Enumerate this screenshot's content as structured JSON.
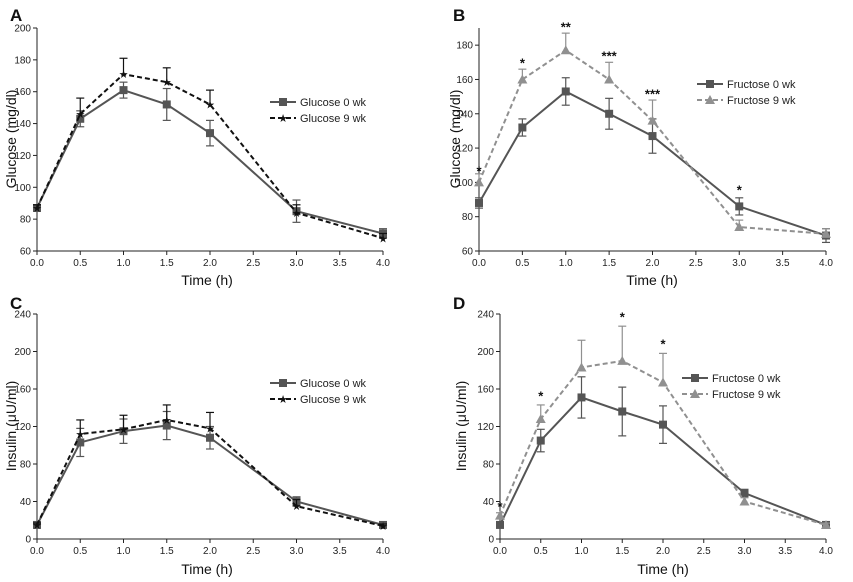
{
  "chart_data": [
    {
      "panel": "A",
      "type": "line",
      "xlabel": "Time (h)",
      "ylabel": "Glucose (mg/dl)",
      "xlim": [
        0,
        4
      ],
      "ylim": [
        60,
        200
      ],
      "xticks": [
        "0.0",
        "0.5",
        "1.0",
        "1.5",
        "2.0",
        "2.5",
        "3.0",
        "3.5",
        "4.0"
      ],
      "yticks": [
        "60",
        "80",
        "100",
        "120",
        "140",
        "160",
        "180",
        "200"
      ],
      "x": [
        0,
        0.5,
        1.0,
        1.5,
        2.0,
        3.0,
        4.0
      ],
      "legend_position": "right-middle",
      "series": [
        {
          "name": "Glucose 0 wk",
          "values": [
            87,
            143,
            161,
            152,
            134,
            85,
            71
          ],
          "errors": [
            2,
            5,
            5,
            10,
            8,
            7,
            3
          ],
          "color": "#555555",
          "dashed": false,
          "marker": "square"
        },
        {
          "name": "Glucose 9 wk",
          "values": [
            87,
            146,
            171,
            166,
            152,
            84,
            68
          ],
          "errors": [
            2,
            10,
            10,
            9,
            9,
            5,
            3
          ],
          "color": "#111111",
          "dashed": true,
          "marker": "star"
        }
      ],
      "annotations": []
    },
    {
      "panel": "B",
      "type": "line",
      "xlabel": "Time (h)",
      "ylabel": "Glucose (mg/dl)",
      "xlim": [
        0,
        4
      ],
      "ylim": [
        60,
        190
      ],
      "xticks": [
        "0.0",
        "0.5",
        "1.0",
        "1.5",
        "2.0",
        "2.5",
        "3.0",
        "3.5",
        "4.0"
      ],
      "yticks": [
        "60",
        "80",
        "100",
        "120",
        "140",
        "160",
        "180"
      ],
      "x": [
        0,
        0.5,
        1.0,
        1.5,
        2.0,
        3.0,
        4.0
      ],
      "legend_position": "right-top",
      "series": [
        {
          "name": "Fructose 0 wk",
          "values": [
            88,
            132,
            153,
            140,
            127,
            86,
            69
          ],
          "errors": [
            3,
            5,
            8,
            9,
            10,
            5,
            4
          ],
          "color": "#555555",
          "dashed": false,
          "marker": "square"
        },
        {
          "name": "Fructose 9 wk",
          "values": [
            100,
            160,
            177,
            160,
            136,
            74,
            70
          ],
          "errors": [
            5,
            6,
            10,
            10,
            12,
            4,
            3
          ],
          "color": "#909090",
          "dashed": true,
          "marker": "triangle"
        }
      ],
      "annotations": [
        {
          "x": 0.0,
          "value": 104,
          "text": "*"
        },
        {
          "x": 0.5,
          "value": 167,
          "text": "*"
        },
        {
          "x": 1.0,
          "value": 188,
          "text": "**"
        },
        {
          "x": 1.5,
          "value": 171,
          "text": "***"
        },
        {
          "x": 2.0,
          "value": 149,
          "text": "***"
        },
        {
          "x": 3.0,
          "value": 93,
          "text": "*"
        }
      ]
    },
    {
      "panel": "C",
      "type": "line",
      "xlabel": "Time (h)",
      "ylabel": "Insulin (μU/ml)",
      "xlim": [
        0,
        4
      ],
      "ylim": [
        0,
        240
      ],
      "xticks": [
        "0.0",
        "0.5",
        "1.0",
        "1.5",
        "2.0",
        "2.5",
        "3.0",
        "3.5",
        "4.0"
      ],
      "yticks": [
        "0",
        "40",
        "80",
        "120",
        "160",
        "200",
        "240"
      ],
      "x": [
        0,
        0.5,
        1.0,
        1.5,
        2.0,
        3.0,
        4.0
      ],
      "legend_position": "right-middle",
      "series": [
        {
          "name": "Glucose 0 wk",
          "values": [
            15,
            103,
            115,
            121,
            108,
            40,
            15
          ],
          "errors": [
            2,
            15,
            13,
            15,
            12,
            5,
            2
          ],
          "color": "#555555",
          "dashed": false,
          "marker": "square"
        },
        {
          "name": "Glucose 9 wk",
          "values": [
            15,
            112,
            117,
            127,
            118,
            35,
            14
          ],
          "errors": [
            2,
            15,
            15,
            16,
            17,
            7,
            2
          ],
          "color": "#111111",
          "dashed": true,
          "marker": "star"
        }
      ],
      "annotations": []
    },
    {
      "panel": "D",
      "type": "line",
      "xlabel": "Time (h)",
      "ylabel": "Insulin (μU/ml)",
      "xlim": [
        0,
        4
      ],
      "ylim": [
        0,
        240
      ],
      "xticks": [
        "0.0",
        "0.5",
        "1.0",
        "1.5",
        "2.0",
        "2.5",
        "3.0",
        "3.5",
        "4.0"
      ],
      "yticks": [
        "0",
        "40",
        "80",
        "120",
        "160",
        "200",
        "240"
      ],
      "x": [
        0,
        0.5,
        1.0,
        1.5,
        2.0,
        3.0,
        4.0
      ],
      "legend_position": "right-middle",
      "series": [
        {
          "name": "Fructose 0 wk",
          "values": [
            15,
            105,
            151,
            136,
            122,
            49,
            15
          ],
          "errors": [
            2,
            12,
            22,
            26,
            20,
            4,
            2
          ],
          "color": "#555555",
          "dashed": false,
          "marker": "square"
        },
        {
          "name": "Fructose 9 wk",
          "values": [
            25,
            128,
            183,
            190,
            167,
            40,
            15
          ],
          "errors": [
            3,
            15,
            29,
            37,
            31,
            4,
            2
          ],
          "color": "#909090",
          "dashed": true,
          "marker": "triangle"
        }
      ],
      "annotations": [
        {
          "x": 0.0,
          "value": 30,
          "text": "*"
        },
        {
          "x": 0.5,
          "value": 148,
          "text": "*"
        },
        {
          "x": 1.5,
          "value": 232,
          "text": "*"
        },
        {
          "x": 2.0,
          "value": 203,
          "text": "*"
        }
      ]
    }
  ]
}
